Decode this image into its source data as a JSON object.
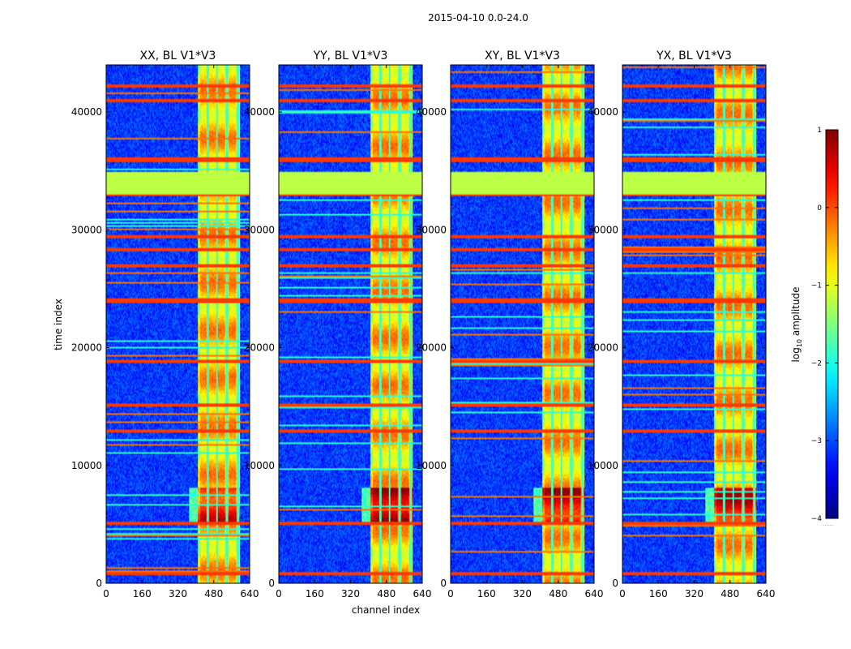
{
  "figure_title": "2015-04-10 0.0-24.0",
  "chart_data": {
    "type": "heatmap",
    "suptitle": "2015-04-10 0.0-24.0",
    "xlabel": "channel index",
    "ylabel": "time index",
    "xlim": [
      0,
      640
    ],
    "ylim": [
      0,
      44000
    ],
    "x_ticks": [
      0,
      160,
      320,
      480,
      640
    ],
    "y_ticks": [
      0,
      10000,
      20000,
      30000,
      40000
    ],
    "panels": [
      {
        "title": "XX, BL V1*V3",
        "pol": "XX"
      },
      {
        "title": "YY, BL V1*V3",
        "pol": "YY"
      },
      {
        "title": "XY, BL V1*V3",
        "pol": "XY"
      },
      {
        "title": "YX, BL V1*V3",
        "pol": "YX"
      }
    ],
    "colorbar": {
      "label_prefix": "log",
      "label_sub": "10",
      "label_suffix": " amplitude",
      "range": [
        -4,
        1
      ],
      "ticks": [
        1,
        0,
        -1,
        -2,
        -3,
        -4
      ],
      "tick_labels": [
        "1",
        "0",
        "−1",
        "−2",
        "−3",
        "−4"
      ],
      "colormap": "jet",
      "ellipsis": "......"
    },
    "features": {
      "signal_band_channels": [
        410,
        600
      ],
      "bright_columns_channels": [
        [
          420,
          450
        ],
        [
          460,
          490
        ],
        [
          500,
          530
        ],
        [
          550,
          580
        ]
      ],
      "dead_columns_channels": [
        455,
        495,
        540,
        590
      ],
      "flagged_block_time": [
        33000,
        35000
      ],
      "flagged_value": -1.2,
      "strong_rows_time": [
        700,
        5100,
        12900,
        15100,
        18800,
        24000,
        26900,
        28300,
        29500,
        33000,
        36000,
        41000,
        42300
      ],
      "peak_time_range": [
        5000,
        8000
      ],
      "background_value": -3.1
    }
  }
}
